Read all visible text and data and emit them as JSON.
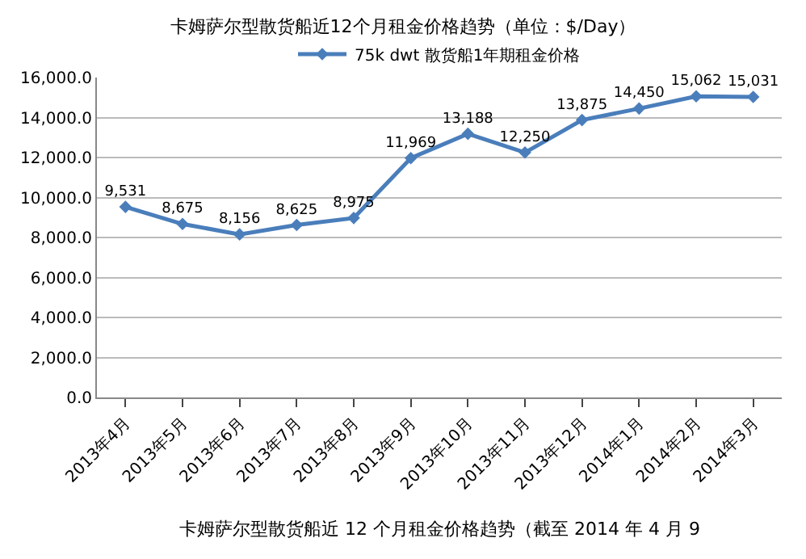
{
  "chart_data": {
    "type": "line",
    "title": "卡姆萨尔型散货船近12个月租金价格趋势（单位：$/Day）",
    "categories": [
      "2013年4月",
      "2013年5月",
      "2013年6月",
      "2013年7月",
      "2013年8月",
      "2013年9月",
      "2013年10月",
      "2013年11月",
      "2013年12月",
      "2014年1月",
      "2014年2月",
      "2014年3月"
    ],
    "series": [
      {
        "name": "75k dwt 散货船1年期租金价格",
        "color": "#4a7ebb",
        "values": [
          9531,
          8675,
          8156,
          8625,
          8975,
          11969,
          13188,
          12250,
          13875,
          14450,
          15062,
          15031
        ],
        "value_labels": [
          "9,531",
          "8,675",
          "8,156",
          "8,625",
          "8,975",
          "11,969",
          "13,188",
          "12,250",
          "13,875",
          "14,450",
          "15,062",
          "15,031"
        ]
      }
    ],
    "ylim": [
      0,
      16000
    ],
    "yticks": [
      {
        "value": 0,
        "label": "0.0"
      },
      {
        "value": 2000,
        "label": "2,000.0"
      },
      {
        "value": 4000,
        "label": "4,000.0"
      },
      {
        "value": 6000,
        "label": "6,000.0"
      },
      {
        "value": 8000,
        "label": "8,000.0"
      },
      {
        "value": 10000,
        "label": "10,000.0"
      },
      {
        "value": 12000,
        "label": "12,000.0"
      },
      {
        "value": 14000,
        "label": "14,000.0"
      },
      {
        "value": 16000,
        "label": "16,000.0"
      }
    ],
    "grid": "y",
    "legend": "top",
    "marker": "diamond",
    "line_style": "solid",
    "annotations": [
      "卡姆萨尔型散货船近 12 个月租金价格趋势（截至 2014 年 4 月 9"
    ]
  }
}
